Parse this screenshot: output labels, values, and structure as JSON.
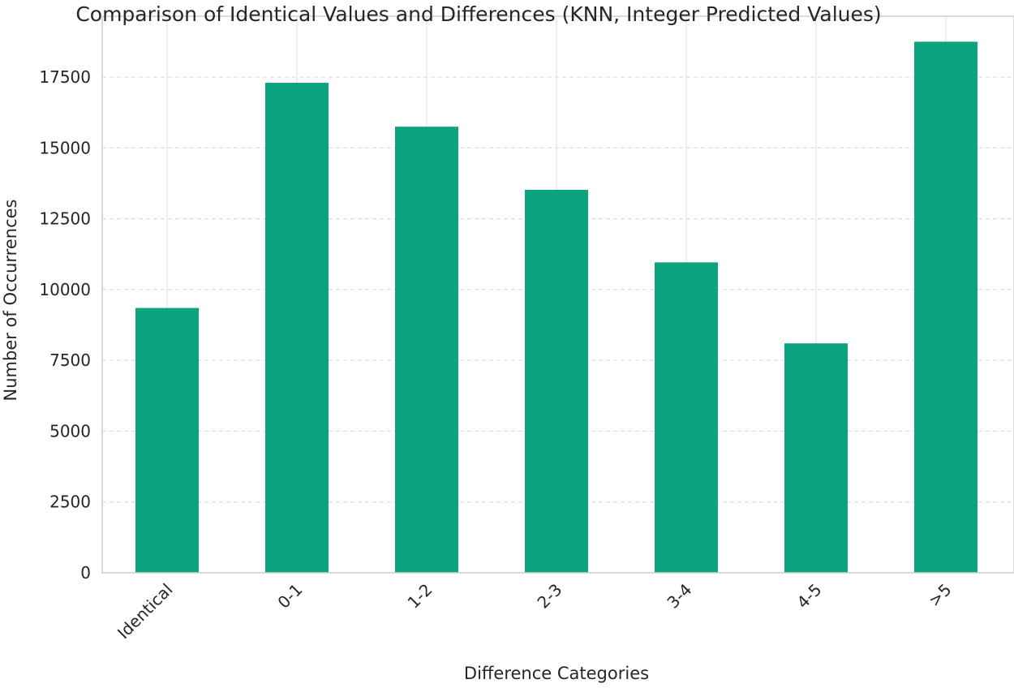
{
  "chart_data": {
    "type": "bar",
    "title": "Comparison of Identical Values and Differences (KNN, Integer Predicted Values)",
    "xlabel": "Difference Categories",
    "ylabel": "Number of Occurrences",
    "categories": [
      "Identical",
      "0-1",
      "1-2",
      "2-3",
      "3-4",
      "4-5",
      ">5"
    ],
    "values": [
      9350,
      17300,
      15750,
      13520,
      10960,
      8100,
      18750
    ],
    "ylim": [
      0,
      19650
    ],
    "yticks": [
      0,
      2500,
      5000,
      7500,
      10000,
      12500,
      15000,
      17500
    ],
    "ytick_labels": [
      "0",
      "2500",
      "5000",
      "7500",
      "10000",
      "12500",
      "15000",
      "17500"
    ],
    "grid": true,
    "legend": "none"
  },
  "colors": {
    "bar": "#0ca47f",
    "grid_x": "#e3e3e3",
    "grid_y": "#dcdcdc",
    "frame": "#cfcfcf",
    "text": "#262626"
  }
}
